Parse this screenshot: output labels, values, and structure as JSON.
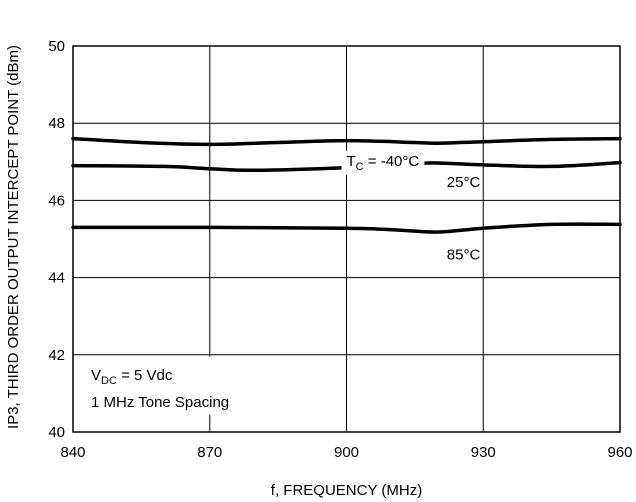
{
  "chart_data": {
    "type": "line",
    "title": "",
    "xlabel": "f, FREQUENCY (MHz)",
    "ylabel": "IP3, THIRD ORDER OUTPUT INTERCEPT POINT (dBm)",
    "xlim": [
      840,
      960
    ],
    "ylim": [
      40,
      50
    ],
    "x_ticks": [
      840,
      870,
      900,
      930,
      960
    ],
    "y_ticks": [
      40,
      42,
      44,
      46,
      48,
      50
    ],
    "grid": true,
    "annotation": {
      "line1_main": "V",
      "line1_sub": "DC",
      "line1_rest": " = 5 Vdc",
      "line2": "1 MHz Tone Spacing"
    },
    "series": [
      {
        "name": "TC = -40°C",
        "label_main": "T",
        "label_sub": "C",
        "label_rest": " = -40°C",
        "x": [
          840,
          855,
          870,
          885,
          900,
          915,
          920,
          930,
          945,
          960
        ],
        "y": [
          47.6,
          47.5,
          47.45,
          47.5,
          47.55,
          47.5,
          47.48,
          47.52,
          47.58,
          47.6
        ]
      },
      {
        "name": "25°C",
        "label_main": "25°C",
        "x": [
          840,
          860,
          870,
          880,
          900,
          915,
          920,
          930,
          945,
          960
        ],
        "y": [
          46.9,
          46.88,
          46.82,
          46.78,
          46.85,
          46.95,
          46.97,
          46.92,
          46.88,
          46.98
        ]
      },
      {
        "name": "85°C",
        "label_main": "85°C",
        "x": [
          840,
          870,
          900,
          910,
          920,
          930,
          945,
          960
        ],
        "y": [
          45.3,
          45.3,
          45.28,
          45.24,
          45.18,
          45.28,
          45.38,
          45.38
        ]
      }
    ]
  }
}
